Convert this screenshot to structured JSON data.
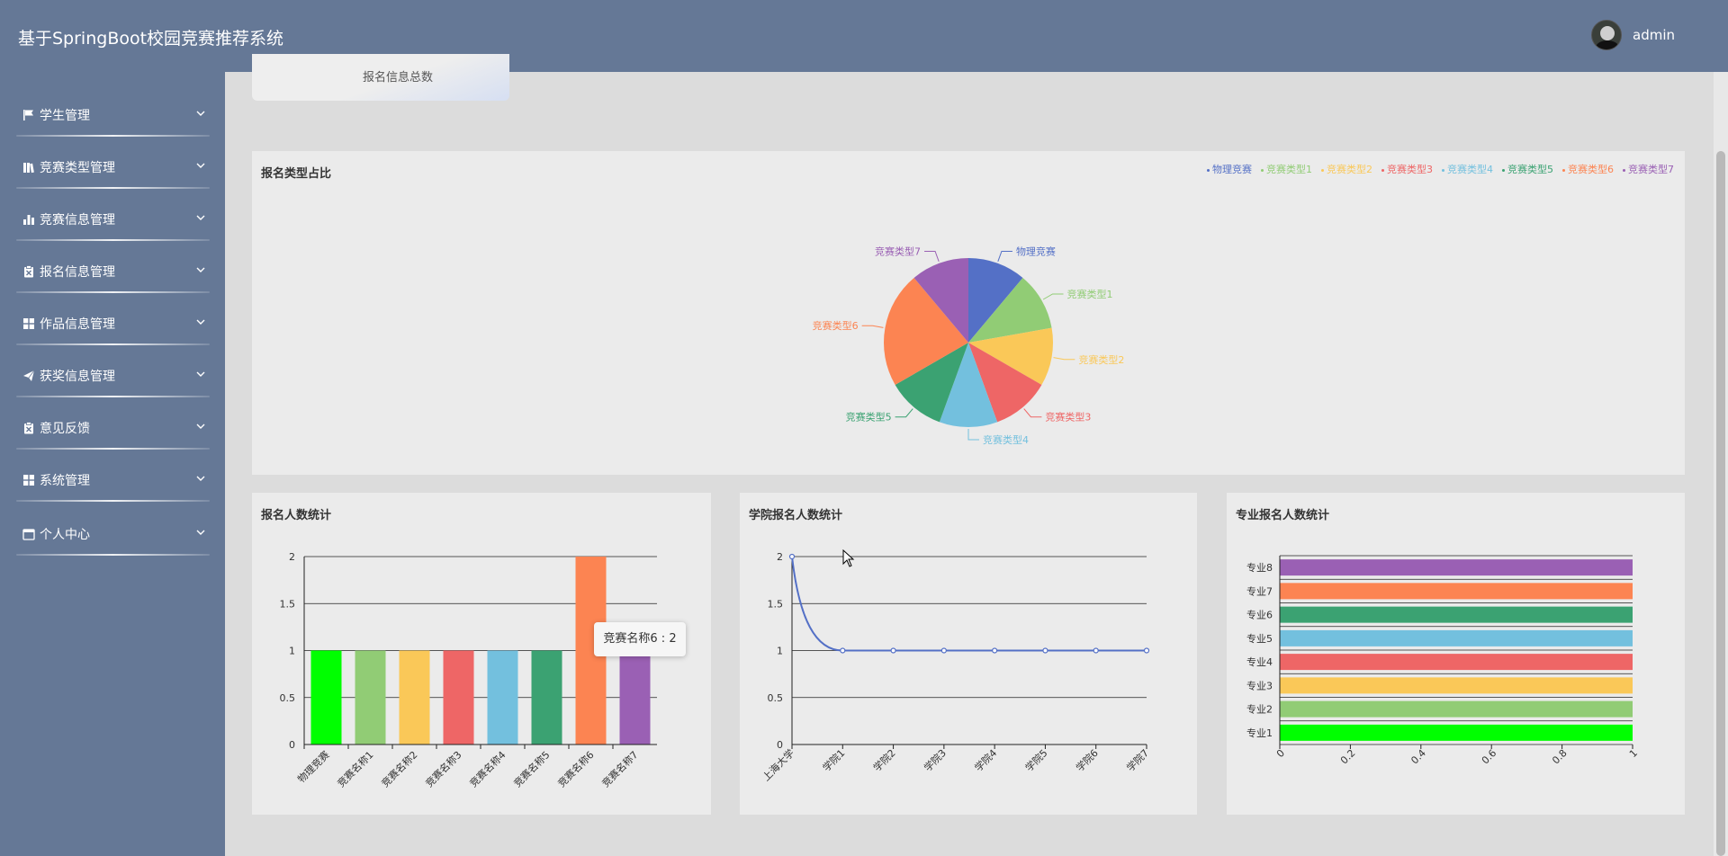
{
  "header": {
    "app_title": "基于SpringBoot校园竞赛推荐系统",
    "username": "admin"
  },
  "sidebar": {
    "items": [
      {
        "label": "学生管理",
        "icon": "flag-icon"
      },
      {
        "label": "竞赛类型管理",
        "icon": "books-icon"
      },
      {
        "label": "竞赛信息管理",
        "icon": "bar-chart-icon"
      },
      {
        "label": "报名信息管理",
        "icon": "clipboard-icon"
      },
      {
        "label": "作品信息管理",
        "icon": "grid-icon"
      },
      {
        "label": "获奖信息管理",
        "icon": "paper-plane-icon"
      },
      {
        "label": "意见反馈",
        "icon": "clipboard-icon"
      },
      {
        "label": "系统管理",
        "icon": "grid-icon"
      },
      {
        "label": "个人中心",
        "icon": "calendar-icon"
      }
    ]
  },
  "stat_card": {
    "label": "报名信息总数"
  },
  "colors": {
    "palette": [
      "#5470c6",
      "#91cc75",
      "#fac858",
      "#ee6666",
      "#73c0de",
      "#3ba272",
      "#fc8452",
      "#9a60b4"
    ],
    "bar_first": "#00ff00",
    "header_bg": "#657896"
  },
  "pie_chart": {
    "title": "报名类型占比",
    "legend": [
      "物理竞赛",
      "竞赛类型1",
      "竞赛类型2",
      "竞赛类型3",
      "竞赛类型4",
      "竞赛类型5",
      "竞赛类型6",
      "竞赛类型7"
    ]
  },
  "bar_chart": {
    "title": "报名人数统计",
    "tooltip": "竞赛名称6 : 2"
  },
  "line_chart": {
    "title": "学院报名人数统计"
  },
  "hbar_chart": {
    "title": "专业报名人数统计"
  },
  "chart_data": [
    {
      "type": "pie",
      "title": "报名类型占比",
      "categories": [
        "物理竞赛",
        "竞赛类型1",
        "竞赛类型2",
        "竞赛类型3",
        "竞赛类型4",
        "竞赛类型5",
        "竞赛类型6",
        "竞赛类型7"
      ],
      "values": [
        1,
        1,
        1,
        1,
        1,
        1,
        2,
        1
      ],
      "legend_position": "top-right"
    },
    {
      "type": "bar",
      "title": "报名人数统计",
      "categories": [
        "物理竞赛",
        "竞赛名称1",
        "竞赛名称2",
        "竞赛名称3",
        "竞赛名称4",
        "竞赛名称5",
        "竞赛名称6",
        "竞赛名称7"
      ],
      "values": [
        1,
        1,
        1,
        1,
        1,
        1,
        2,
        1
      ],
      "ylim": [
        0,
        2
      ],
      "yticks": [
        "0",
        "0.5",
        "1",
        "1.5",
        "2"
      ]
    },
    {
      "type": "line",
      "title": "学院报名人数统计",
      "categories": [
        "上海大学",
        "学院1",
        "学院2",
        "学院3",
        "学院4",
        "学院5",
        "学院6",
        "学院7"
      ],
      "values": [
        2,
        1,
        1,
        1,
        1,
        1,
        1,
        1
      ],
      "ylim": [
        0,
        2
      ],
      "yticks": [
        "0",
        "0.5",
        "1",
        "1.5",
        "2"
      ]
    },
    {
      "type": "bar",
      "orientation": "horizontal",
      "title": "专业报名人数统计",
      "categories": [
        "专业1",
        "专业2",
        "专业3",
        "专业4",
        "专业5",
        "专业6",
        "专业7",
        "专业8"
      ],
      "values": [
        1,
        1,
        1,
        1,
        1,
        1,
        1,
        1
      ],
      "xlim": [
        0,
        1
      ],
      "xticks": [
        "0",
        "0.2",
        "0.4",
        "0.6",
        "0.8",
        "1"
      ]
    }
  ]
}
